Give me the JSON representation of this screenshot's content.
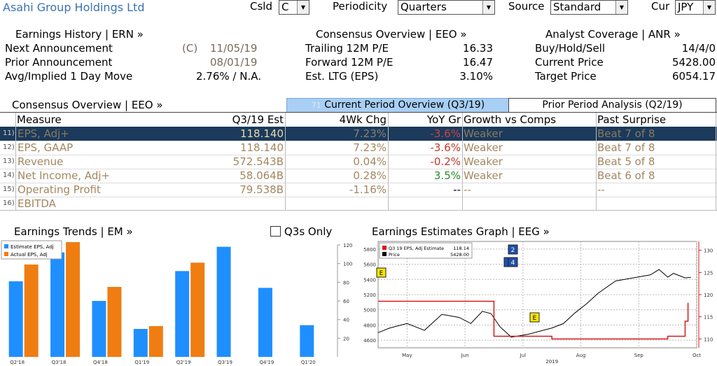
{
  "header": {
    "title": "Asahi Group Holdings Ltd",
    "csld_label": "Csld",
    "csld_value": "C",
    "periodicity_label": "Periodicity",
    "periodicity_value": "Quarters",
    "source_label": "Source",
    "source_value": "Standard",
    "cur_label": "Cur",
    "cur_value": "JPY"
  },
  "earnings_history": {
    "heading": "Earnings History | ERN »",
    "next_label": "Next Announcement",
    "next_flag": "(C)",
    "next_value": "11/05/19",
    "prior_label": "Prior Announcement",
    "prior_value": "08/01/19",
    "move_label": "Avg/Implied 1 Day Move",
    "move_value": "2.76% / N.A."
  },
  "consensus_overview_top": {
    "heading": "Consensus Overview | EEO »",
    "trailing_label": "Trailing 12M P/E",
    "trailing_value": "16.33",
    "forward_label": "Forward 12M P/E",
    "forward_value": "16.47",
    "ltg_label": "Est. LTG (EPS)",
    "ltg_value": "3.10%"
  },
  "analyst_coverage": {
    "heading": "Analyst Coverage | ANR »",
    "bhs_label": "Buy/Hold/Sell",
    "bhs_value": "14/4/0",
    "price_label": "Current Price",
    "price_value": "5428.00",
    "target_label": "Target Price",
    "target_value": "6054.17"
  },
  "consensus_table": {
    "heading": "Consensus Overview | EEO »",
    "tab_current_num": "71",
    "tab_current": "Current Period Overview (Q3/19)",
    "tab_prior": "Prior Period Analysis (Q2/19)",
    "columns": [
      "Measure",
      "Q3/19 Est",
      "4Wk Chg",
      "YoY Gr",
      "Growth vs Comps",
      "Past Surprise"
    ],
    "rows": [
      {
        "num": "11)",
        "measure": "EPS, Adj+",
        "est": "118.140",
        "chg": "7.23%",
        "yoy": "-3.6%",
        "growth": "Weaker",
        "surprise": "Beat 7 of 8"
      },
      {
        "num": "12)",
        "measure": "EPS, GAAP",
        "est": "118.140",
        "chg": "7.23%",
        "yoy": "-3.6%",
        "growth": "Weaker",
        "surprise": "Beat 7 of 8"
      },
      {
        "num": "13)",
        "measure": "Revenue",
        "est": "572.543B",
        "chg": "0.04%",
        "yoy": "-0.2%",
        "growth": "Weaker",
        "surprise": "Beat 5 of 8"
      },
      {
        "num": "14)",
        "measure": "Net Income, Adj+",
        "est": "58.064B",
        "chg": "0.28%",
        "yoy": "3.5%",
        "growth": "Weaker",
        "surprise": "Beat 6 of 8"
      },
      {
        "num": "15)",
        "measure": "Operating Profit",
        "est": "79.538B",
        "chg": "-1.16%",
        "yoy": "--",
        "growth": "--",
        "surprise": "--"
      },
      {
        "num": "16)",
        "measure": "EBITDA",
        "est": "",
        "chg": "",
        "yoy": "",
        "growth": "",
        "surprise": ""
      }
    ]
  },
  "earnings_trends": {
    "heading": "Earnings Trends | EM »",
    "q3s_only": "Q3s Only"
  },
  "earnings_graph": {
    "heading": "Earnings Estimates Graph | EEG »",
    "legend_est_label": "Q3 19 EPS, Adj Estimate",
    "legend_est_value": "118.14",
    "legend_price_label": "Price",
    "legend_price_value": "5428.00",
    "year_label": "2019",
    "marker_e": "E",
    "marker_2": "2",
    "marker_4": "4"
  },
  "chart_data": [
    {
      "type": "bar",
      "categories": [
        "Q2'18",
        "Q3'18",
        "Q4'18",
        "Q1'19",
        "Q2'19",
        "Q3'19",
        "Q4'19",
        "Q1'20"
      ],
      "series": [
        {
          "name": "Estimate EPS, Adj",
          "color": "#1f8fff",
          "values": [
            81,
            112,
            60,
            30,
            92,
            118,
            74,
            34
          ]
        },
        {
          "name": "Actual EPS, Adj",
          "color": "#f07d12",
          "values": [
            99,
            123,
            75,
            33,
            101,
            null,
            null,
            null
          ]
        }
      ],
      "ylim": [
        0,
        120
      ],
      "yticks": [
        20,
        40,
        60,
        80,
        100,
        120
      ],
      "legend": "top-left"
    },
    {
      "type": "line",
      "x_ticks": [
        "May",
        "Jun",
        "Jul",
        "Aug",
        "Sep",
        "Oct"
      ],
      "series": [
        {
          "name": "Q3 19 EPS, Adj Estimate",
          "color": "#d7191c",
          "axis": "right",
          "x": [
            0.0,
            0.5,
            0.82,
            0.95,
            1.0,
            1.1,
            1.3,
            1.8,
            2.0,
            2.5,
            3.0,
            3.5,
            4.0,
            4.5,
            4.75,
            5.0,
            5.1,
            5.3,
            5.35
          ],
          "values": [
            118.5,
            118.5,
            118.5,
            118.5,
            118.5,
            118.5,
            118.5,
            118.5,
            110.6,
            110.6,
            110.0,
            110.0,
            110.0,
            110.0,
            110.0,
            110.6,
            110.6,
            114.0,
            118.14
          ]
        },
        {
          "name": "Price",
          "color": "#000000",
          "axis": "left",
          "x": [
            0.0,
            0.2,
            0.5,
            0.8,
            1.1,
            1.4,
            1.6,
            1.8,
            1.95,
            2.1,
            2.3,
            2.6,
            3.0,
            3.2,
            3.4,
            3.6,
            3.8,
            4.1,
            4.4,
            4.7,
            4.85,
            5.0,
            5.1,
            5.3,
            5.4
          ],
          "values": [
            4700,
            4760,
            4820,
            4730,
            4940,
            4900,
            4820,
            4980,
            4950,
            4780,
            4640,
            4680,
            4760,
            4820,
            4960,
            5080,
            5220,
            5380,
            5420,
            5460,
            5530,
            5430,
            5480,
            5420,
            5428
          ]
        }
      ],
      "y_left_ticks": [
        4600,
        4800,
        5000,
        5200,
        5400,
        5600,
        5800
      ],
      "y_right_ticks": [
        110,
        115,
        120,
        125,
        130
      ],
      "ylim_left": [
        4500,
        5900
      ],
      "ylim_right": [
        108,
        132
      ],
      "legend": "top-left"
    }
  ]
}
